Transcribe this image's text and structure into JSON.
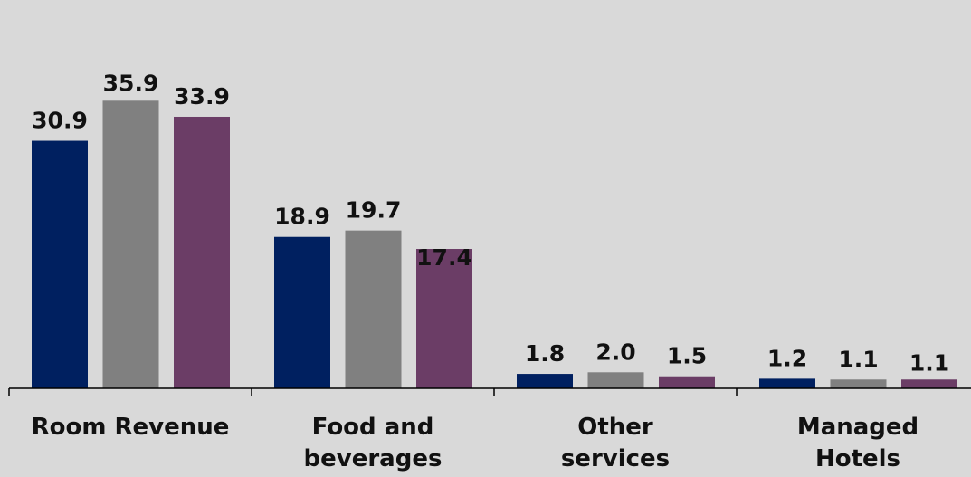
{
  "chart_data": {
    "type": "bar",
    "categories": [
      [
        "Room Revenue"
      ],
      [
        "Food and",
        "beverages"
      ],
      [
        "Other",
        "services"
      ],
      [
        "Managed",
        "Hotels"
      ]
    ],
    "series": [
      {
        "values": [
          30.9,
          18.9,
          1.8,
          1.2
        ],
        "labels": [
          "30.9",
          "18.9",
          "1.8",
          "1.2"
        ],
        "color": "#002060"
      },
      {
        "values": [
          35.9,
          19.7,
          2.0,
          1.1
        ],
        "labels": [
          "35.9",
          "19.7",
          "2.0",
          "1.1"
        ],
        "color": "#808080"
      },
      {
        "values": [
          33.9,
          17.4,
          1.5,
          1.1
        ],
        "labels": [
          "33.9",
          "17.4",
          "1.5",
          "1.1"
        ],
        "color": "#6b3d66"
      }
    ],
    "title": "",
    "xlabel": "",
    "ylabel": "",
    "ylim": [
      0,
      40
    ],
    "grid": false,
    "legend": "none",
    "background": "#d9d9d9"
  }
}
